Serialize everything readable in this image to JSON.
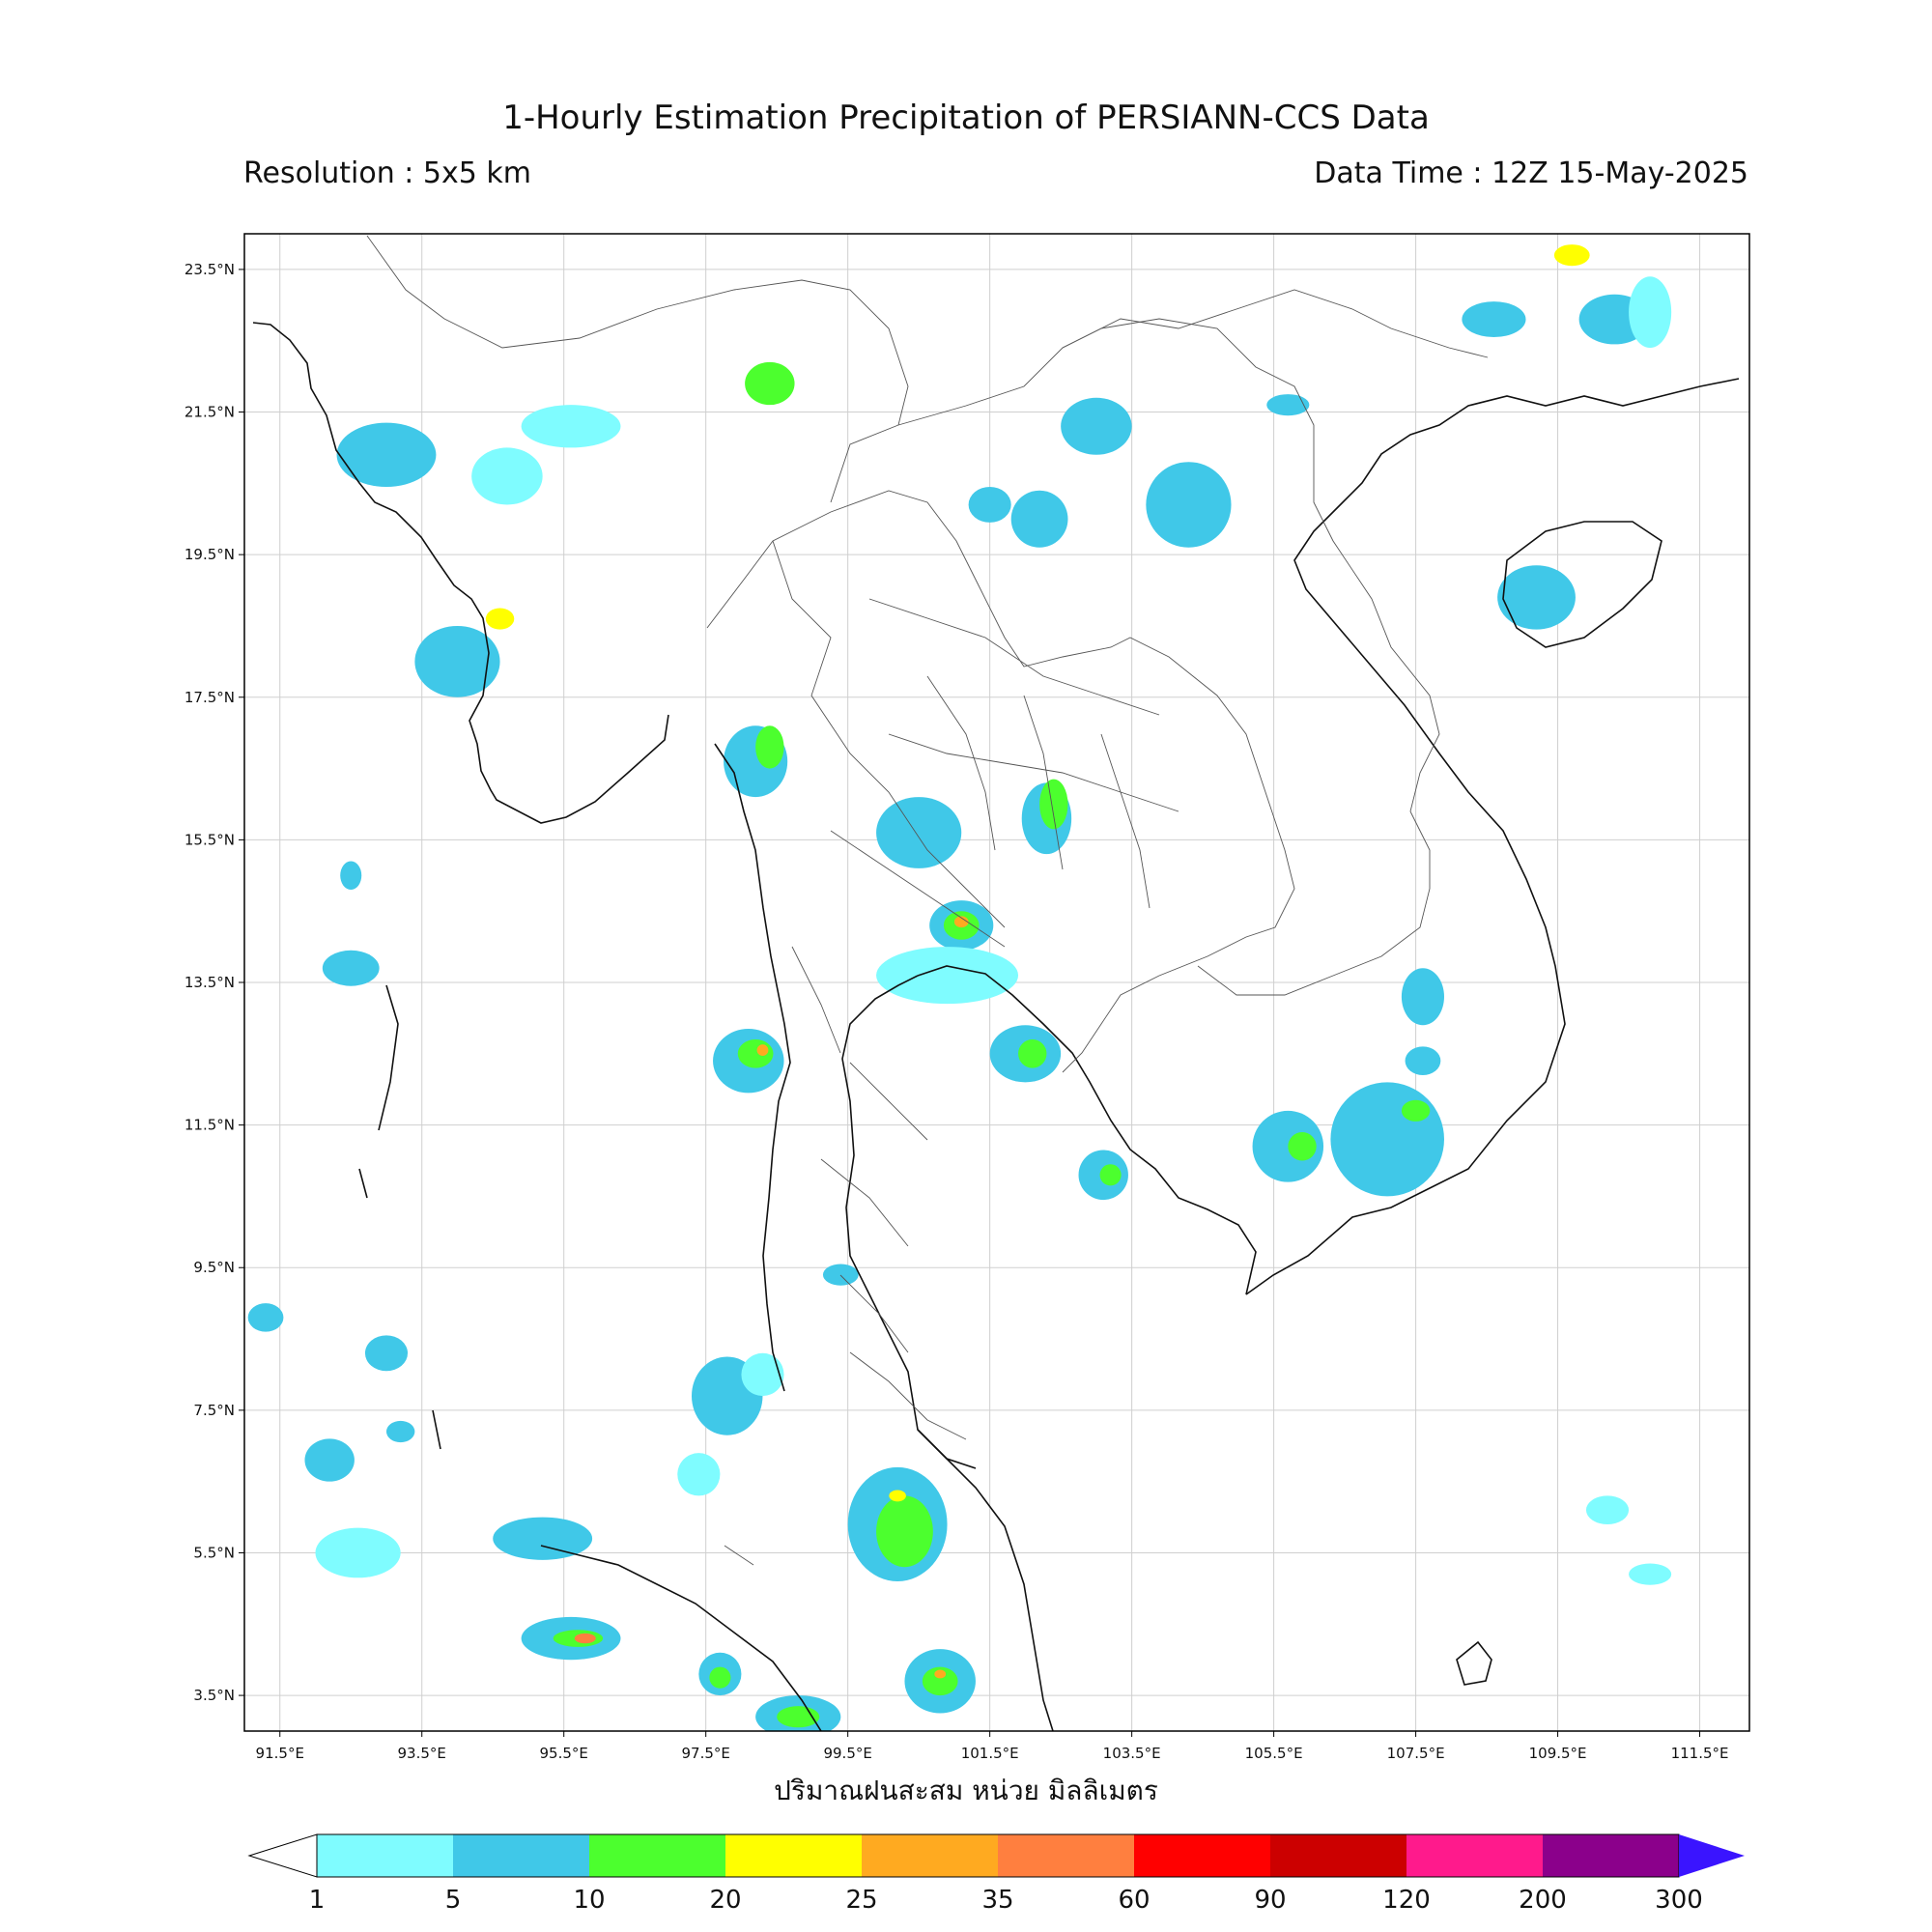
{
  "header": {
    "title": "1-Hourly Estimation Precipitation of PERSIANN-CCS Data",
    "resolution": "Resolution : 5x5 km",
    "data_time": "Data Time : 12Z 15-May-2025"
  },
  "axes": {
    "lon_ticks": [
      "91.5°E",
      "93.5°E",
      "95.5°E",
      "97.5°E",
      "99.5°E",
      "101.5°E",
      "103.5°E",
      "105.5°E",
      "107.5°E",
      "109.5°E",
      "111.5°E"
    ],
    "lat_ticks": [
      "23.5°N",
      "21.5°N",
      "19.5°N",
      "17.5°N",
      "15.5°N",
      "13.5°N",
      "11.5°N",
      "9.5°N",
      "7.5°N",
      "5.5°N",
      "3.5°N"
    ],
    "lon_range": [
      91.0,
      112.2
    ],
    "lat_range": [
      3.0,
      24.0
    ],
    "grid": true
  },
  "colorbar": {
    "label": "ปริมาณฝนสะสม หน่วย มิลลิเมตร",
    "levels": [
      "1",
      "5",
      "10",
      "20",
      "25",
      "35",
      "60",
      "90",
      "120",
      "200",
      "300"
    ],
    "colors": [
      "#7ffcff",
      "#40c8e8",
      "#4cff2e",
      "#ffff00",
      "#ffaa20",
      "#ff7f3f",
      "#ff0000",
      "#cc0000",
      "#ff1a8c",
      "#8b008b"
    ],
    "under_color": "#ffffff",
    "over_color": "#3a14ff"
  },
  "rain_cells": [
    {
      "lon": 93.0,
      "lat": 20.9,
      "rx": 0.7,
      "ry": 0.45,
      "level": 1
    },
    {
      "lon": 94.7,
      "lat": 20.6,
      "rx": 0.5,
      "ry": 0.4,
      "level": 0
    },
    {
      "lon": 95.6,
      "lat": 21.3,
      "rx": 0.7,
      "ry": 0.3,
      "level": 0
    },
    {
      "lon": 94.0,
      "lat": 18.0,
      "rx": 0.6,
      "ry": 0.5,
      "level": 1
    },
    {
      "lon": 94.6,
      "lat": 18.6,
      "rx": 0.2,
      "ry": 0.15,
      "level": 3
    },
    {
      "lon": 98.4,
      "lat": 21.9,
      "rx": 0.35,
      "ry": 0.3,
      "level": 2
    },
    {
      "lon": 103.0,
      "lat": 21.3,
      "rx": 0.5,
      "ry": 0.4,
      "level": 1
    },
    {
      "lon": 102.2,
      "lat": 20.0,
      "rx": 0.4,
      "ry": 0.4,
      "level": 1
    },
    {
      "lon": 104.3,
      "lat": 20.2,
      "rx": 0.6,
      "ry": 0.6,
      "level": 1
    },
    {
      "lon": 101.5,
      "lat": 20.2,
      "rx": 0.3,
      "ry": 0.25,
      "level": 1
    },
    {
      "lon": 105.7,
      "lat": 21.6,
      "rx": 0.3,
      "ry": 0.15,
      "level": 1
    },
    {
      "lon": 108.6,
      "lat": 22.8,
      "rx": 0.45,
      "ry": 0.25,
      "level": 1
    },
    {
      "lon": 110.3,
      "lat": 22.8,
      "rx": 0.5,
      "ry": 0.35,
      "level": 1
    },
    {
      "lon": 109.7,
      "lat": 23.7,
      "rx": 0.25,
      "ry": 0.15,
      "level": 3
    },
    {
      "lon": 109.2,
      "lat": 18.9,
      "rx": 0.55,
      "ry": 0.45,
      "level": 1
    },
    {
      "lon": 98.2,
      "lat": 16.6,
      "rx": 0.45,
      "ry": 0.5,
      "level": 1
    },
    {
      "lon": 98.4,
      "lat": 16.8,
      "rx": 0.2,
      "ry": 0.3,
      "level": 2
    },
    {
      "lon": 100.5,
      "lat": 15.6,
      "rx": 0.6,
      "ry": 0.5,
      "level": 1
    },
    {
      "lon": 102.3,
      "lat": 15.8,
      "rx": 0.35,
      "ry": 0.5,
      "level": 1
    },
    {
      "lon": 102.4,
      "lat": 16.0,
      "rx": 0.2,
      "ry": 0.35,
      "level": 2
    },
    {
      "lon": 101.1,
      "lat": 14.3,
      "rx": 0.45,
      "ry": 0.35,
      "level": 1
    },
    {
      "lon": 101.1,
      "lat": 14.3,
      "rx": 0.25,
      "ry": 0.2,
      "level": 2
    },
    {
      "lon": 101.1,
      "lat": 14.35,
      "rx": 0.1,
      "ry": 0.08,
      "level": 4
    },
    {
      "lon": 100.9,
      "lat": 13.6,
      "rx": 1.0,
      "ry": 0.4,
      "level": 0
    },
    {
      "lon": 102.0,
      "lat": 12.5,
      "rx": 0.5,
      "ry": 0.4,
      "level": 1
    },
    {
      "lon": 102.1,
      "lat": 12.5,
      "rx": 0.2,
      "ry": 0.2,
      "level": 2
    },
    {
      "lon": 98.1,
      "lat": 12.4,
      "rx": 0.5,
      "ry": 0.45,
      "level": 1
    },
    {
      "lon": 98.2,
      "lat": 12.5,
      "rx": 0.25,
      "ry": 0.2,
      "level": 2
    },
    {
      "lon": 98.3,
      "lat": 12.55,
      "rx": 0.08,
      "ry": 0.08,
      "level": 4
    },
    {
      "lon": 103.1,
      "lat": 10.8,
      "rx": 0.35,
      "ry": 0.35,
      "level": 1
    },
    {
      "lon": 103.2,
      "lat": 10.8,
      "rx": 0.15,
      "ry": 0.15,
      "level": 2
    },
    {
      "lon": 107.1,
      "lat": 11.3,
      "rx": 0.8,
      "ry": 0.8,
      "level": 1
    },
    {
      "lon": 107.5,
      "lat": 11.7,
      "rx": 0.2,
      "ry": 0.15,
      "level": 2
    },
    {
      "lon": 105.7,
      "lat": 11.2,
      "rx": 0.5,
      "ry": 0.5,
      "level": 1
    },
    {
      "lon": 105.9,
      "lat": 11.2,
      "rx": 0.2,
      "ry": 0.2,
      "level": 2
    },
    {
      "lon": 107.6,
      "lat": 13.3,
      "rx": 0.3,
      "ry": 0.4,
      "level": 1
    },
    {
      "lon": 107.6,
      "lat": 12.4,
      "rx": 0.25,
      "ry": 0.2,
      "level": 1
    },
    {
      "lon": 97.8,
      "lat": 7.7,
      "rx": 0.5,
      "ry": 0.55,
      "level": 1
    },
    {
      "lon": 97.4,
      "lat": 6.6,
      "rx": 0.3,
      "ry": 0.3,
      "level": 0
    },
    {
      "lon": 100.2,
      "lat": 5.9,
      "rx": 0.7,
      "ry": 0.8,
      "level": 1
    },
    {
      "lon": 100.3,
      "lat": 5.8,
      "rx": 0.4,
      "ry": 0.5,
      "level": 2
    },
    {
      "lon": 100.2,
      "lat": 6.3,
      "rx": 0.12,
      "ry": 0.08,
      "level": 3
    },
    {
      "lon": 100.8,
      "lat": 3.7,
      "rx": 0.5,
      "ry": 0.45,
      "level": 1
    },
    {
      "lon": 100.8,
      "lat": 3.7,
      "rx": 0.25,
      "ry": 0.2,
      "level": 2
    },
    {
      "lon": 100.8,
      "lat": 3.8,
      "rx": 0.08,
      "ry": 0.06,
      "level": 4
    },
    {
      "lon": 98.8,
      "lat": 3.2,
      "rx": 0.6,
      "ry": 0.3,
      "level": 1
    },
    {
      "lon": 98.8,
      "lat": 3.2,
      "rx": 0.3,
      "ry": 0.15,
      "level": 2
    },
    {
      "lon": 97.7,
      "lat": 3.8,
      "rx": 0.3,
      "ry": 0.3,
      "level": 1
    },
    {
      "lon": 97.7,
      "lat": 3.75,
      "rx": 0.15,
      "ry": 0.15,
      "level": 2
    },
    {
      "lon": 95.6,
      "lat": 4.3,
      "rx": 0.7,
      "ry": 0.3,
      "level": 1
    },
    {
      "lon": 95.7,
      "lat": 4.3,
      "rx": 0.35,
      "ry": 0.12,
      "level": 2
    },
    {
      "lon": 95.8,
      "lat": 4.3,
      "rx": 0.15,
      "ry": 0.07,
      "level": 5
    },
    {
      "lon": 95.2,
      "lat": 5.7,
      "rx": 0.7,
      "ry": 0.3,
      "level": 1
    },
    {
      "lon": 92.6,
      "lat": 5.5,
      "rx": 0.6,
      "ry": 0.35,
      "level": 0
    },
    {
      "lon": 92.2,
      "lat": 6.8,
      "rx": 0.35,
      "ry": 0.3,
      "level": 1
    },
    {
      "lon": 92.5,
      "lat": 13.7,
      "rx": 0.4,
      "ry": 0.25,
      "level": 1
    },
    {
      "lon": 91.3,
      "lat": 8.8,
      "rx": 0.25,
      "ry": 0.2,
      "level": 1
    },
    {
      "lon": 93.0,
      "lat": 8.3,
      "rx": 0.3,
      "ry": 0.25,
      "level": 1
    },
    {
      "lon": 93.2,
      "lat": 7.2,
      "rx": 0.2,
      "ry": 0.15,
      "level": 1
    },
    {
      "lon": 92.5,
      "lat": 15.0,
      "rx": 0.15,
      "ry": 0.2,
      "level": 1
    },
    {
      "lon": 98.3,
      "lat": 8.0,
      "rx": 0.3,
      "ry": 0.3,
      "level": 0
    },
    {
      "lon": 99.4,
      "lat": 9.4,
      "rx": 0.25,
      "ry": 0.15,
      "level": 1
    },
    {
      "lon": 110.8,
      "lat": 22.9,
      "rx": 0.3,
      "ry": 0.5,
      "level": 0
    },
    {
      "lon": 110.8,
      "lat": 5.2,
      "rx": 0.3,
      "ry": 0.15,
      "level": 0
    },
    {
      "lon": 110.2,
      "lat": 6.1,
      "rx": 0.3,
      "ry": 0.2,
      "level": 0
    }
  ]
}
